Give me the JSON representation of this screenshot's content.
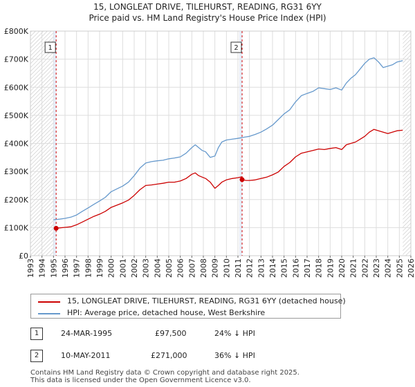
{
  "title_line1": "15, LONGLEAT DRIVE, TILEHURST, READING, RG31 6YY",
  "title_line2": "Price paid vs. HM Land Registry's House Price Index (HPI)",
  "chart_data": {
    "type": "line",
    "xlim": [
      1993,
      2026
    ],
    "ylim": [
      0,
      800000
    ],
    "x_ticks": [
      "1993",
      "1994",
      "1995",
      "1996",
      "1997",
      "1998",
      "1999",
      "2000",
      "2001",
      "2002",
      "2003",
      "2004",
      "2005",
      "2006",
      "2007",
      "2008",
      "2009",
      "2010",
      "2011",
      "2012",
      "2013",
      "2014",
      "2015",
      "2016",
      "2017",
      "2018",
      "2019",
      "2020",
      "2021",
      "2022",
      "2023",
      "2024",
      "2025",
      "2026"
    ],
    "y_ticks": [
      {
        "value": 0,
        "label": "£0"
      },
      {
        "value": 100000,
        "label": "£100K"
      },
      {
        "value": 200000,
        "label": "£200K"
      },
      {
        "value": 300000,
        "label": "£300K"
      },
      {
        "value": 400000,
        "label": "£400K"
      },
      {
        "value": 500000,
        "label": "£500K"
      },
      {
        "value": 600000,
        "label": "£600K"
      },
      {
        "value": 700000,
        "label": "£700K"
      },
      {
        "value": 800000,
        "label": "£800K"
      }
    ],
    "grid": true,
    "hatched_ranges": [
      [
        1993,
        1995.0
      ],
      [
        2025.3,
        2026
      ]
    ],
    "series": [
      {
        "name": "15, LONGLEAT DRIVE, TILEHURST, READING, RG31 6YY (detached house)",
        "color": "#cc0000",
        "x": [
          1995.23,
          1995.5,
          1996,
          1996.5,
          1997,
          1997.5,
          1998,
          1998.5,
          1999,
          1999.5,
          2000,
          2000.5,
          2001,
          2001.5,
          2002,
          2002.5,
          2003,
          2003.5,
          2004,
          2004.5,
          2005,
          2005.5,
          2006,
          2006.5,
          2007,
          2007.3,
          2007.6,
          2007.9,
          2008.2,
          2008.6,
          2009,
          2009.3,
          2009.6,
          2010,
          2010.5,
          2011,
          2011.36,
          2011.36,
          2011.7,
          2012,
          2012.5,
          2013,
          2013.5,
          2014,
          2014.5,
          2015,
          2015.5,
          2016,
          2016.5,
          2017,
          2017.5,
          2018,
          2018.5,
          2019,
          2019.5,
          2020,
          2020.4,
          2020.8,
          2021.2,
          2021.6,
          2022,
          2022.4,
          2022.8,
          2023.2,
          2023.6,
          2024,
          2024.4,
          2024.8,
          2025.3
        ],
        "y": [
          97500,
          99000,
          101000,
          103000,
          110000,
          120000,
          130000,
          140000,
          148000,
          158000,
          172000,
          180000,
          188000,
          198000,
          215000,
          235000,
          250000,
          252000,
          255000,
          258000,
          262000,
          262000,
          266000,
          275000,
          290000,
          295000,
          285000,
          280000,
          275000,
          262000,
          240000,
          250000,
          262000,
          270000,
          275000,
          278000,
          281000,
          271000,
          268000,
          268000,
          270000,
          275000,
          280000,
          288000,
          298000,
          318000,
          332000,
          352000,
          365000,
          370000,
          375000,
          380000,
          378000,
          382000,
          385000,
          378000,
          395000,
          400000,
          405000,
          415000,
          425000,
          440000,
          450000,
          445000,
          440000,
          435000,
          440000,
          445000,
          447000
        ]
      },
      {
        "name": "HPI: Average price, detached house, West Berkshire",
        "color": "#6699cc",
        "x": [
          1995,
          1995.5,
          1996,
          1996.5,
          1997,
          1997.5,
          1998,
          1998.5,
          1999,
          1999.5,
          2000,
          2000.5,
          2001,
          2001.5,
          2002,
          2002.5,
          2003,
          2003.5,
          2004,
          2004.5,
          2005,
          2005.5,
          2006,
          2006.5,
          2007,
          2007.3,
          2007.6,
          2007.9,
          2008.2,
          2008.6,
          2009,
          2009.3,
          2009.6,
          2010,
          2010.5,
          2011,
          2011.5,
          2012,
          2012.5,
          2013,
          2013.5,
          2014,
          2014.5,
          2015,
          2015.5,
          2016,
          2016.5,
          2017,
          2017.5,
          2018,
          2018.5,
          2019,
          2019.5,
          2020,
          2020.4,
          2020.8,
          2021.2,
          2021.6,
          2022,
          2022.4,
          2022.8,
          2023.2,
          2023.6,
          2024,
          2024.4,
          2024.8,
          2025.3
        ],
        "y": [
          128000,
          130000,
          133000,
          137000,
          145000,
          158000,
          170000,
          183000,
          195000,
          208000,
          228000,
          238000,
          248000,
          262000,
          285000,
          312000,
          330000,
          335000,
          338000,
          340000,
          345000,
          348000,
          352000,
          365000,
          385000,
          395000,
          385000,
          375000,
          370000,
          350000,
          355000,
          385000,
          405000,
          412000,
          415000,
          418000,
          422000,
          425000,
          432000,
          440000,
          452000,
          465000,
          485000,
          505000,
          520000,
          548000,
          570000,
          578000,
          585000,
          598000,
          595000,
          592000,
          598000,
          590000,
          615000,
          632000,
          645000,
          665000,
          685000,
          700000,
          705000,
          690000,
          670000,
          675000,
          680000,
          690000,
          695000
        ]
      }
    ],
    "markers": [
      {
        "label": "1",
        "x": 1995.23,
        "y": 97500
      },
      {
        "label": "2",
        "x": 2011.36,
        "y": 271000
      }
    ]
  },
  "legend": {
    "items": [
      {
        "label": "15, LONGLEAT DRIVE, TILEHURST, READING, RG31 6YY (detached house)",
        "color": "#cc0000"
      },
      {
        "label": "HPI: Average price, detached house, West Berkshire",
        "color": "#6699cc"
      }
    ]
  },
  "sales": [
    {
      "num": "1",
      "date": "24-MAR-1995",
      "price": "£97,500",
      "hpi": "24% ↓ HPI"
    },
    {
      "num": "2",
      "date": "10-MAY-2011",
      "price": "£271,000",
      "hpi": "36% ↓ HPI"
    }
  ],
  "footer_line1": "Contains HM Land Registry data © Crown copyright and database right 2025.",
  "footer_line2": "This data is licensed under the Open Government Licence v3.0."
}
